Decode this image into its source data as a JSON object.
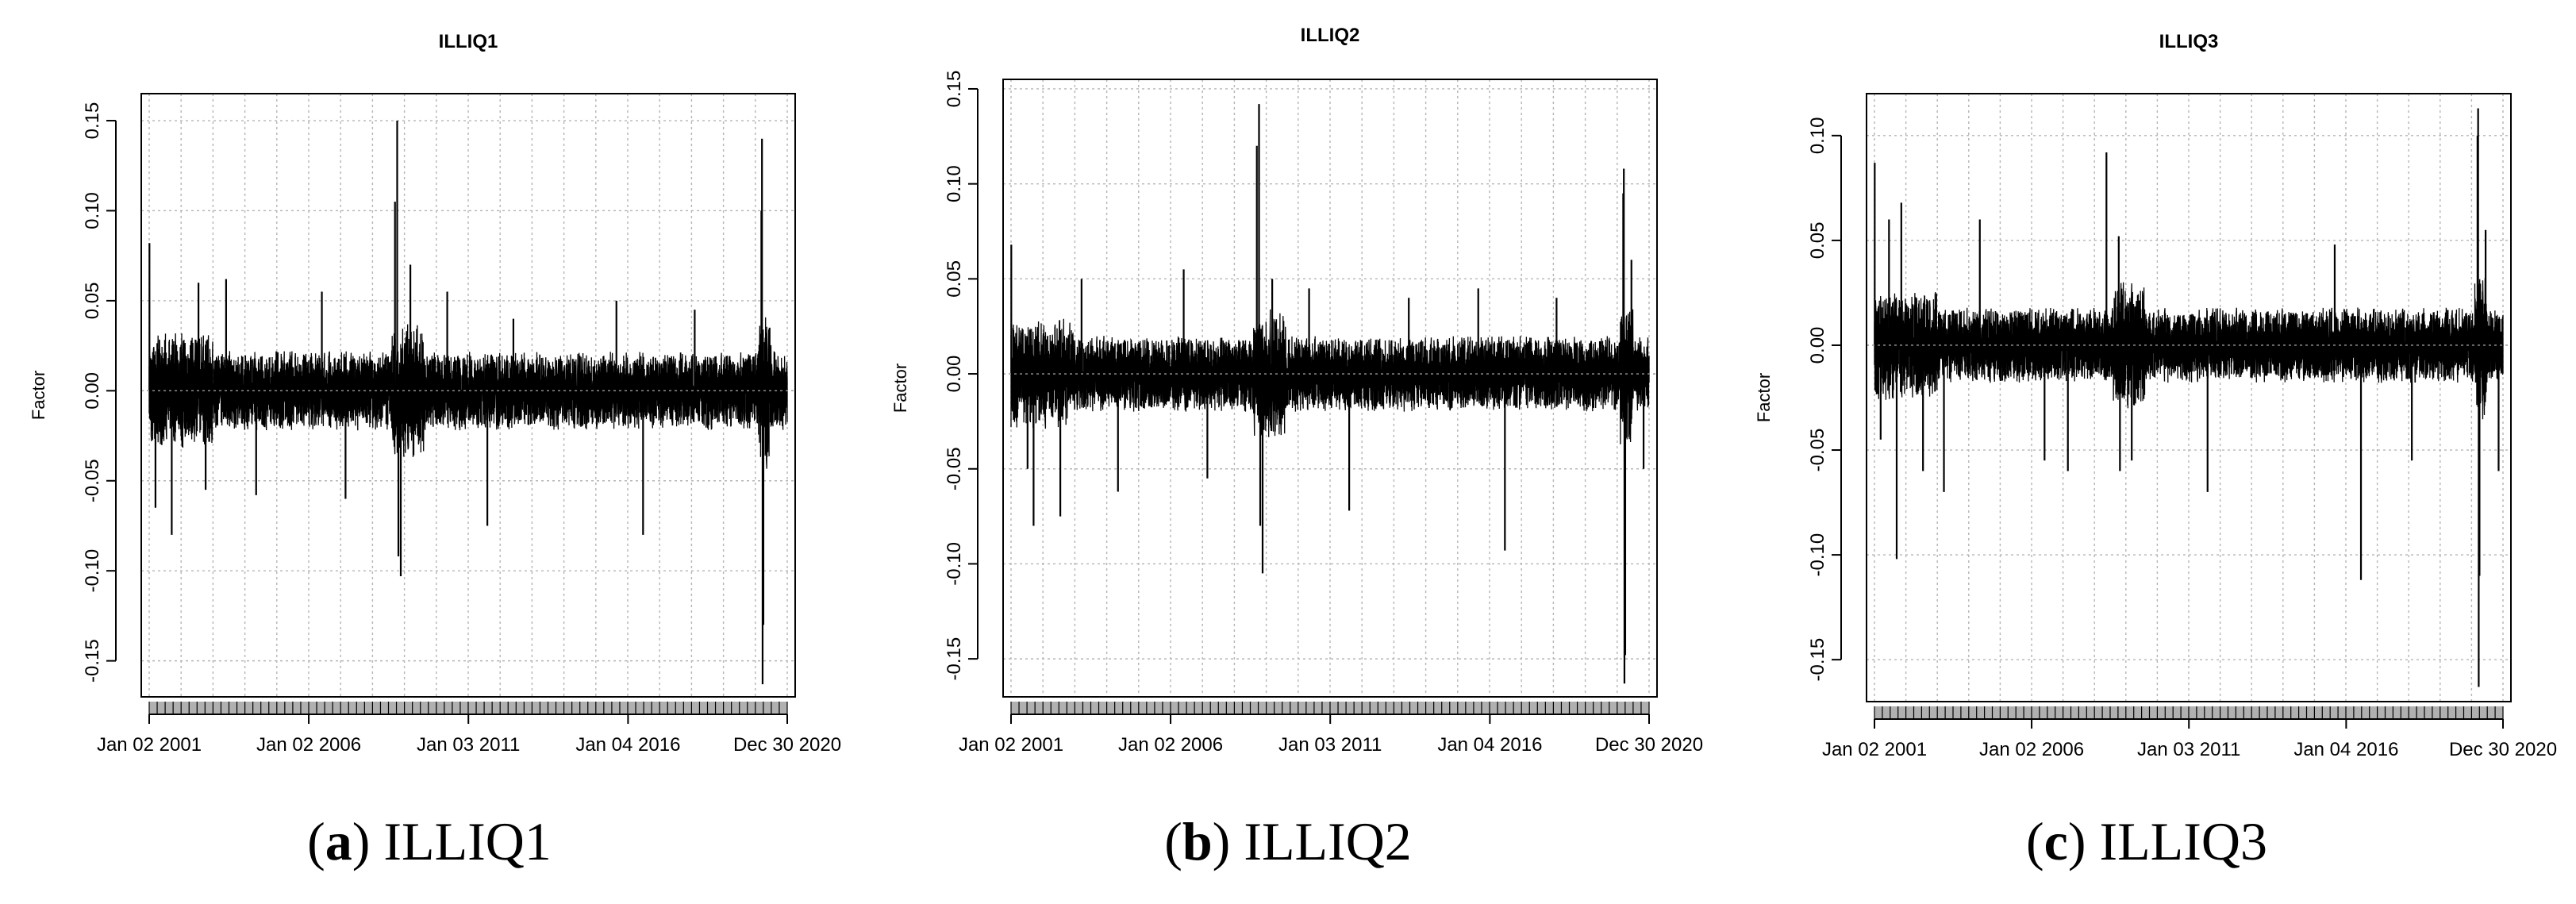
{
  "chart_data": [
    {
      "type": "line",
      "title": "ILLIQ1",
      "ylabel": "Factor",
      "xlabel": "",
      "caption_letter": "a",
      "caption_text": "ILLIQ1",
      "xlim": [
        "2001-01-02",
        "2020-12-30"
      ],
      "ylim": [
        -0.17,
        0.165
      ],
      "yticks": [
        0.15,
        0.1,
        0.05,
        0.0,
        -0.05,
        -0.1,
        -0.15
      ],
      "ytick_labels": [
        "0.15",
        "0.10",
        "0.05",
        "0.00",
        "-0.05",
        "-0.10",
        "-0.15"
      ],
      "xtick_labels": [
        "Jan 02 2001",
        "Jan 02 2006",
        "Jan 03 2011",
        "Jan 04 2016",
        "Dec 30 2020"
      ],
      "xtick_dates": [
        "2001-01-02",
        "2006-01-02",
        "2011-01-03",
        "2016-01-04",
        "2020-12-30"
      ],
      "grid": true,
      "baseline_amplitude": 0.022,
      "series": [
        {
          "values_note_free": true,
          "spikes": [
            {
              "date": "2001-01-05",
              "value": 0.082
            },
            {
              "date": "2001-03-15",
              "value": -0.065
            },
            {
              "date": "2001-09-17",
              "value": -0.08
            },
            {
              "date": "2002-07-20",
              "value": 0.06
            },
            {
              "date": "2002-10-10",
              "value": -0.055
            },
            {
              "date": "2003-06-01",
              "value": 0.062
            },
            {
              "date": "2004-05-10",
              "value": -0.058
            },
            {
              "date": "2006-06-01",
              "value": 0.055
            },
            {
              "date": "2007-02-27",
              "value": -0.06
            },
            {
              "date": "2008-09-15",
              "value": 0.105
            },
            {
              "date": "2008-10-10",
              "value": 0.15
            },
            {
              "date": "2008-10-24",
              "value": -0.092
            },
            {
              "date": "2008-11-20",
              "value": -0.103
            },
            {
              "date": "2009-03-10",
              "value": 0.07
            },
            {
              "date": "2010-05-06",
              "value": 0.055
            },
            {
              "date": "2011-08-08",
              "value": -0.075
            },
            {
              "date": "2012-06-01",
              "value": 0.04
            },
            {
              "date": "2015-08-24",
              "value": 0.05
            },
            {
              "date": "2016-06-24",
              "value": -0.08
            },
            {
              "date": "2018-02-05",
              "value": 0.045
            },
            {
              "date": "2020-03-09",
              "value": 0.1
            },
            {
              "date": "2020-03-16",
              "value": 0.14
            },
            {
              "date": "2020-03-23",
              "value": -0.163
            },
            {
              "date": "2020-04-01",
              "value": -0.13
            },
            {
              "date": "2020-06-11",
              "value": 0.035
            }
          ]
        }
      ]
    },
    {
      "type": "line",
      "title": "ILLIQ2",
      "ylabel": "Factor",
      "xlabel": "",
      "caption_letter": "b",
      "caption_text": "ILLIQ2",
      "xlim": [
        "2001-01-02",
        "2020-12-30"
      ],
      "ylim": [
        -0.17,
        0.155
      ],
      "yticks": [
        0.15,
        0.1,
        0.05,
        0.0,
        -0.05,
        -0.1,
        -0.15
      ],
      "ytick_labels": [
        "0.15",
        "0.10",
        "0.05",
        "0.00",
        "-0.05",
        "-0.10",
        "-0.15"
      ],
      "xtick_labels": [
        "Jan 02 2001",
        "Jan 02 2006",
        "Jan 03 2011",
        "Jan 04 2016",
        "Dec 30 2020"
      ],
      "xtick_dates": [
        "2001-01-02",
        "2006-01-02",
        "2011-01-03",
        "2016-01-04",
        "2020-12-30"
      ],
      "grid": true,
      "baseline_amplitude": 0.02,
      "series": [
        {
          "spikes": [
            {
              "date": "2001-01-05",
              "value": 0.068
            },
            {
              "date": "2001-07-10",
              "value": -0.05
            },
            {
              "date": "2001-09-17",
              "value": -0.08
            },
            {
              "date": "2002-07-20",
              "value": -0.075
            },
            {
              "date": "2003-03-20",
              "value": 0.05
            },
            {
              "date": "2004-05-10",
              "value": -0.062
            },
            {
              "date": "2006-06-01",
              "value": 0.055
            },
            {
              "date": "2007-02-27",
              "value": -0.055
            },
            {
              "date": "2008-09-15",
              "value": 0.12
            },
            {
              "date": "2008-10-10",
              "value": 0.142
            },
            {
              "date": "2008-10-24",
              "value": -0.08
            },
            {
              "date": "2008-11-20",
              "value": -0.105
            },
            {
              "date": "2009-03-10",
              "value": 0.05
            },
            {
              "date": "2010-05-06",
              "value": 0.045
            },
            {
              "date": "2011-08-08",
              "value": -0.072
            },
            {
              "date": "2013-06-20",
              "value": 0.04
            },
            {
              "date": "2015-08-24",
              "value": 0.045
            },
            {
              "date": "2016-06-24",
              "value": -0.093
            },
            {
              "date": "2018-02-05",
              "value": 0.04
            },
            {
              "date": "2020-03-09",
              "value": 0.095
            },
            {
              "date": "2020-03-16",
              "value": 0.108
            },
            {
              "date": "2020-03-23",
              "value": -0.163
            },
            {
              "date": "2020-04-01",
              "value": -0.148
            },
            {
              "date": "2020-06-11",
              "value": 0.06
            },
            {
              "date": "2020-10-28",
              "value": -0.05
            }
          ]
        }
      ]
    },
    {
      "type": "line",
      "title": "ILLIQ3",
      "ylabel": "Factor",
      "xlabel": "",
      "caption_letter": "c",
      "caption_text": "ILLIQ3",
      "xlim": [
        "2001-01-02",
        "2020-12-30"
      ],
      "ylim": [
        -0.17,
        0.12
      ],
      "yticks": [
        0.1,
        0.05,
        0.0,
        -0.05,
        -0.1,
        -0.15
      ],
      "ytick_labels": [
        "0.10",
        "0.05",
        "0.00",
        "-0.05",
        "-0.10",
        "-0.15"
      ],
      "xtick_labels": [
        "Jan 02 2001",
        "Jan 02 2006",
        "Jan 03 2011",
        "Jan 04 2016",
        "Dec 30 2020"
      ],
      "xtick_dates": [
        "2001-01-02",
        "2006-01-02",
        "2011-01-03",
        "2016-01-04",
        "2020-12-30"
      ],
      "grid": true,
      "baseline_amplitude": 0.018,
      "series": [
        {
          "spikes": [
            {
              "date": "2001-01-05",
              "value": 0.087
            },
            {
              "date": "2001-03-15",
              "value": -0.045
            },
            {
              "date": "2001-06-20",
              "value": 0.06
            },
            {
              "date": "2001-09-17",
              "value": -0.102
            },
            {
              "date": "2001-11-10",
              "value": 0.068
            },
            {
              "date": "2002-07-20",
              "value": -0.06
            },
            {
              "date": "2003-03-20",
              "value": -0.07
            },
            {
              "date": "2004-05-10",
              "value": 0.06
            },
            {
              "date": "2006-06-01",
              "value": -0.055
            },
            {
              "date": "2007-02-27",
              "value": -0.06
            },
            {
              "date": "2008-05-20",
              "value": 0.092
            },
            {
              "date": "2008-10-10",
              "value": 0.052
            },
            {
              "date": "2008-10-24",
              "value": -0.06
            },
            {
              "date": "2009-03-10",
              "value": -0.055
            },
            {
              "date": "2011-08-08",
              "value": -0.07
            },
            {
              "date": "2015-08-24",
              "value": 0.048
            },
            {
              "date": "2016-06-24",
              "value": -0.112
            },
            {
              "date": "2018-02-05",
              "value": -0.055
            },
            {
              "date": "2020-03-09",
              "value": 0.1
            },
            {
              "date": "2020-03-16",
              "value": 0.113
            },
            {
              "date": "2020-03-23",
              "value": -0.163
            },
            {
              "date": "2020-04-01",
              "value": -0.11
            },
            {
              "date": "2020-06-11",
              "value": 0.055
            },
            {
              "date": "2020-11-09",
              "value": -0.06
            }
          ]
        }
      ]
    }
  ]
}
